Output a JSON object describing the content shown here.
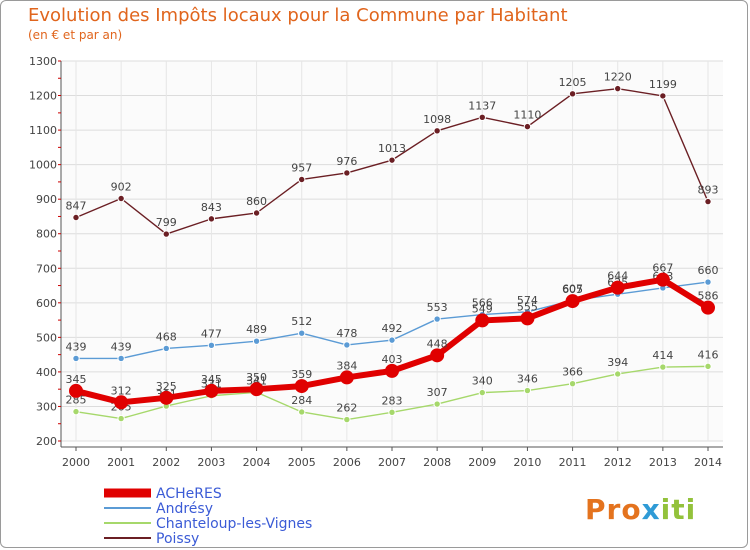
{
  "header": {
    "title": "Evolution des Impôts locaux pour la Commune par Habitant",
    "subtitle": "(en € et par an)"
  },
  "logo": {
    "parts": [
      "Pro",
      "x",
      "iti"
    ]
  },
  "chart_data": {
    "type": "line",
    "x": [
      "2000",
      "2001",
      "2002",
      "2003",
      "2004",
      "2005",
      "2006",
      "2007",
      "2008",
      "2009",
      "2010",
      "2011",
      "2012",
      "2013",
      "2014"
    ],
    "ylim": [
      200,
      1300
    ],
    "yticks": [
      200,
      300,
      400,
      500,
      600,
      700,
      800,
      900,
      1000,
      1100,
      1200,
      1300
    ],
    "grid": true,
    "legend_position": "bottom-left",
    "series": [
      {
        "name": "Poissy",
        "color": "#6b1f24",
        "values": [
          847,
          902,
          799,
          843,
          860,
          957,
          976,
          1013,
          1098,
          1137,
          1110,
          1205,
          1220,
          1199,
          893
        ]
      },
      {
        "name": "Andrésy",
        "color": "#5b9bd5",
        "values": [
          439,
          439,
          468,
          477,
          489,
          512,
          478,
          492,
          553,
          566,
          574,
          607,
          625,
          643,
          660
        ]
      },
      {
        "name": "Chanteloup-les-Vignes",
        "color": "#a6d86b",
        "values": [
          285,
          265,
          301,
          331,
          341,
          284,
          262,
          283,
          307,
          340,
          346,
          366,
          394,
          414,
          416
        ]
      },
      {
        "name": "ACHeRES",
        "color": "#e00000",
        "values": [
          345,
          312,
          325,
          345,
          350,
          359,
          384,
          403,
          448,
          549,
          555,
          605,
          644,
          667,
          586
        ]
      }
    ]
  }
}
